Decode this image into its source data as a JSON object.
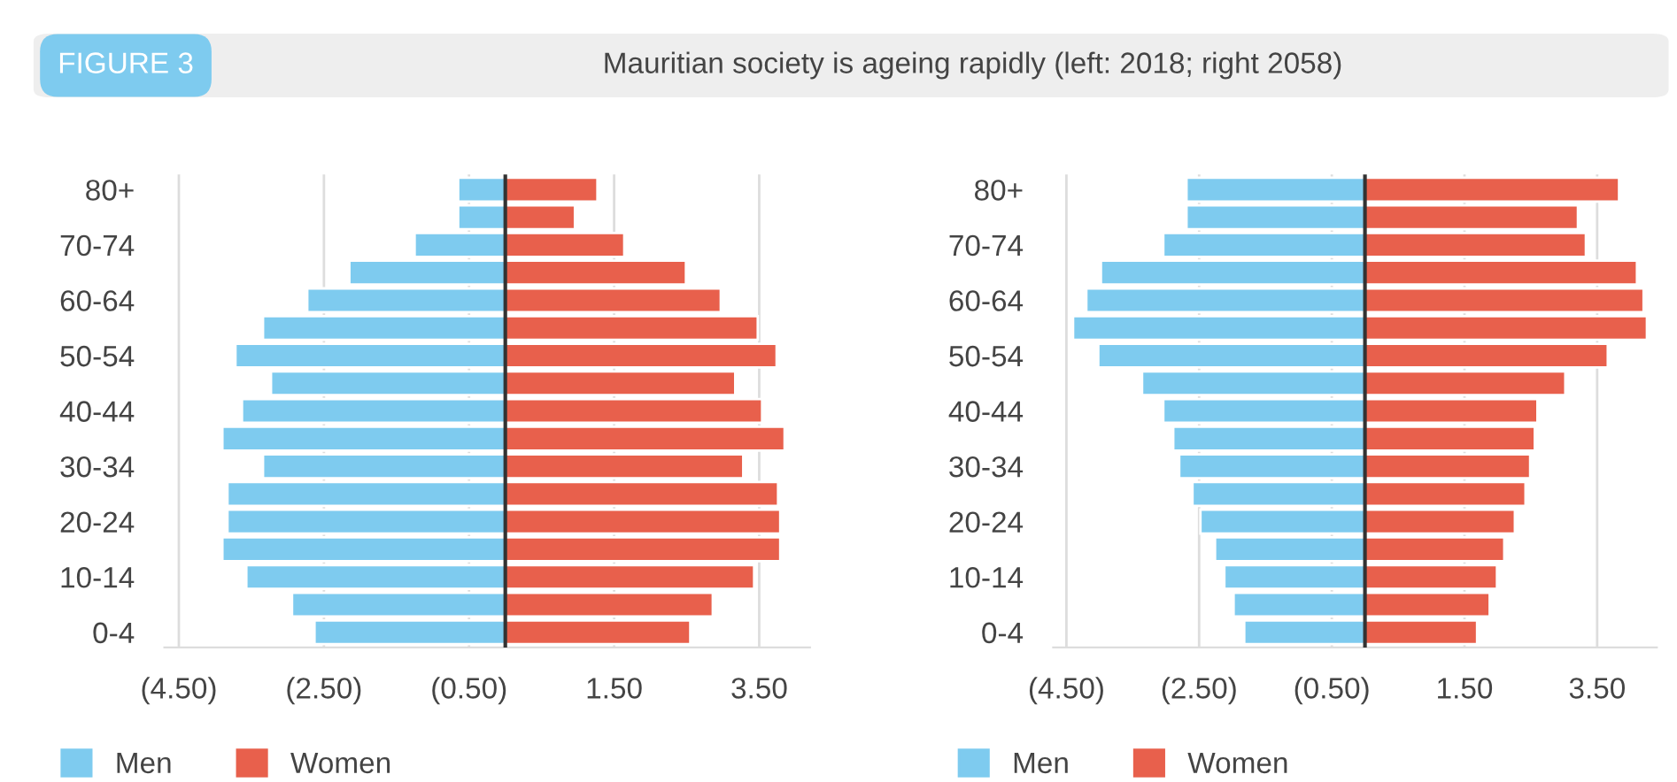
{
  "chart_data": [
    {
      "type": "bar",
      "orientation": "horizontal",
      "title": "Mauritian society is ageing rapidly (left: 2018; right 2058)",
      "annotations": [
        "FIGURE 3"
      ],
      "categories": [
        "80+",
        null,
        "70-74",
        null,
        "60-64",
        null,
        "50-54",
        null,
        "40-44",
        null,
        "30-34",
        null,
        "20-24",
        null,
        "10-14",
        null,
        "0-4"
      ],
      "series": [
        {
          "name": "Men",
          "color": "#7ecbef",
          "values": [
            -0.65,
            -0.65,
            -1.25,
            -2.15,
            -2.73,
            -3.34,
            -3.72,
            -3.23,
            -3.63,
            -3.9,
            -3.34,
            -3.83,
            -3.83,
            -3.9,
            -3.57,
            -2.94,
            -2.63
          ]
        },
        {
          "name": "Women",
          "color": "#e8604c",
          "values": [
            1.27,
            0.96,
            1.64,
            2.49,
            2.97,
            3.48,
            3.74,
            3.17,
            3.54,
            3.85,
            3.28,
            3.76,
            3.79,
            3.79,
            3.43,
            2.86,
            2.55
          ]
        }
      ],
      "xlim": [
        -4.7,
        4.2
      ],
      "xticks": [
        {
          "value": -4.5,
          "label": "(4.50)"
        },
        {
          "value": -2.5,
          "label": "(2.50)"
        },
        {
          "value": -0.5,
          "label": "(0.50)"
        },
        {
          "value": 1.5,
          "label": "1.50"
        },
        {
          "value": 3.5,
          "label": "3.50"
        }
      ],
      "ref_lines": [
        {
          "axis": "x",
          "value": 0,
          "color": "#333333"
        }
      ],
      "grid": "x",
      "legend": "bottom left",
      "stacked": true
    },
    {
      "type": "bar",
      "orientation": "horizontal",
      "categories": [
        "80+",
        null,
        "70-74",
        null,
        "60-64",
        null,
        "50-54",
        null,
        "40-44",
        null,
        "30-34",
        null,
        "20-24",
        null,
        "10-14",
        null,
        "0-4"
      ],
      "series": [
        {
          "name": "Men",
          "color": "#7ecbef",
          "values": [
            -2.69,
            -2.69,
            -3.04,
            -3.98,
            -4.2,
            -4.4,
            -4.02,
            -3.36,
            -3.04,
            -2.89,
            -2.8,
            -2.6,
            -2.48,
            -2.26,
            -2.12,
            -1.98,
            -1.82
          ]
        },
        {
          "name": "Women",
          "color": "#e8604c",
          "values": [
            3.83,
            3.21,
            3.33,
            4.1,
            4.2,
            4.25,
            3.66,
            3.02,
            2.6,
            2.56,
            2.49,
            2.42,
            2.26,
            2.1,
            1.99,
            1.88,
            1.69
          ]
        }
      ],
      "xlim": [
        -4.7,
        4.4
      ],
      "xticks": [
        {
          "value": -4.5,
          "label": "(4.50)"
        },
        {
          "value": -2.5,
          "label": "(2.50)"
        },
        {
          "value": -0.5,
          "label": "(0.50)"
        },
        {
          "value": 1.5,
          "label": "1.50"
        },
        {
          "value": 3.5,
          "label": "3.50"
        }
      ],
      "ref_lines": [
        {
          "axis": "x",
          "value": 0,
          "color": "#333333"
        }
      ],
      "grid": "x",
      "legend": "bottom left",
      "stacked": true
    }
  ]
}
